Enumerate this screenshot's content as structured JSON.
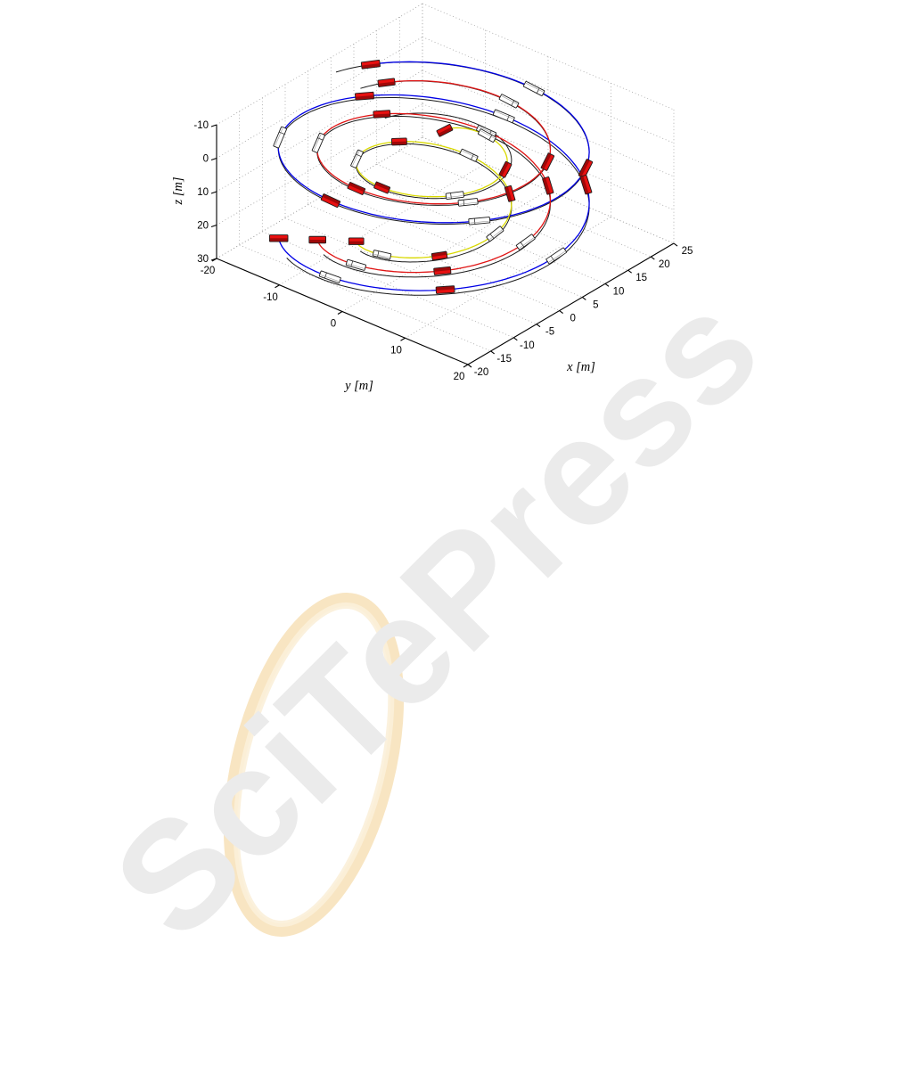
{
  "page": {
    "background": "#ffffff"
  },
  "watermark": {
    "text": "SciTePress",
    "text_color": "#ebebeb",
    "ring_color": "#f6dcae",
    "ring_highlight": "#fbf0d9",
    "angle_deg": -45
  },
  "chart_data": {
    "type": "line",
    "subtype": "3d-trajectory-plot",
    "title": "",
    "xlabel": "x [m]",
    "ylabel": "y [m]",
    "zlabel": "z [m]",
    "x_ticks": [
      -20,
      -15,
      -10,
      -5,
      0,
      5,
      10,
      15,
      20,
      25
    ],
    "y_ticks": [
      -20,
      -10,
      0,
      10,
      20
    ],
    "z_ticks": [
      -10,
      0,
      10,
      20,
      30
    ],
    "x_range": [
      -20,
      25
    ],
    "y_range": [
      -20,
      20
    ],
    "z_range": [
      -10,
      30
    ],
    "z_axis_reversed": true,
    "grid": "dotted",
    "grid_color": "#9a9a9a",
    "axis_color": "#000000",
    "reference_paths": {
      "color": "#1a1a1a",
      "theta_offset_deg": -15,
      "description": "black reference helices under each vehicle trajectory"
    },
    "trajectories": [
      {
        "name": "outer-vehicle-path",
        "color": "#0000e6",
        "center": [
          0,
          0
        ],
        "radius": 20,
        "theta_start_deg": -60,
        "theta_end_deg": 590,
        "z_start": -6,
        "z_end": 26
      },
      {
        "name": "middle-vehicle-path",
        "color": "#e01414",
        "center": [
          0,
          0
        ],
        "radius": 15,
        "theta_start_deg": -60,
        "theta_end_deg": 590,
        "z_start": -6,
        "z_end": 26
      },
      {
        "name": "inner-vehicle-path",
        "color": "#d9d900",
        "center": [
          0,
          0
        ],
        "radius": 10,
        "theta_start_deg": -60,
        "theta_end_deg": 590,
        "z_start": -2,
        "z_end": 26,
        "transient": {
          "dtheta": 38,
          "dr": -4.2,
          "decay": 14
        }
      }
    ],
    "markers": {
      "pattern": "alternating red / white vehicle-box snapshots along each path",
      "times": [
        0,
        0.0833,
        0.1667,
        0.25,
        0.3333,
        0.4167,
        0.5,
        0.5833,
        0.6667,
        0.75,
        0.8333,
        0.9167,
        1
      ],
      "red_fill": "#e81010",
      "red_shade": "rgba(70,0,0,0.45)",
      "white_fill": "#ffffff",
      "outline": "#1c1c1c"
    }
  }
}
